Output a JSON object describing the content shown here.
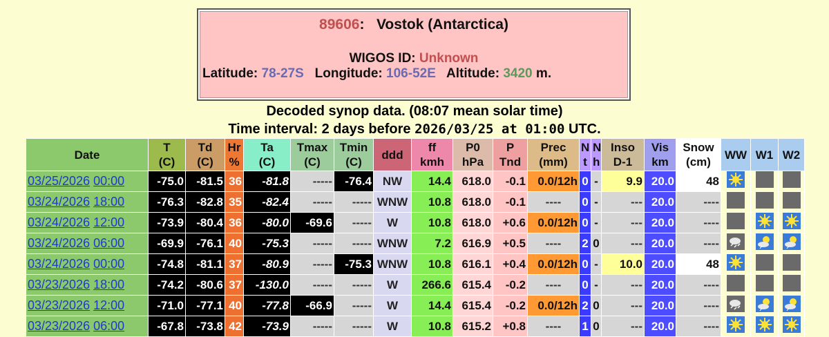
{
  "header": {
    "station": "89606",
    "sep": ":",
    "name": "Vostok (Antarctica)",
    "wigos": {
      "label": "WIGOS ID:",
      "value": "Unknown"
    },
    "latitude": {
      "label": "Latitude:",
      "value": "78-27S"
    },
    "longitude": {
      "label": "Longitude:",
      "value": "106-52E"
    },
    "altitude": {
      "label": "Altitude:",
      "value": "3420",
      "unit": "m."
    }
  },
  "subtitle": {
    "line1": "Decoded synop data. (08:07 mean solar time)",
    "line2a": "Time interval: 2 days before",
    "line2b": "2026/03/25 at 01:00",
    "line2c": "UTC."
  },
  "table": {
    "columns": [
      [
        "Date"
      ],
      [
        "T",
        "(C)"
      ],
      [
        "Td",
        "(C)"
      ],
      [
        "Hr",
        "%"
      ],
      [
        "Ta",
        "(C)"
      ],
      [
        "Tmax",
        "(C)"
      ],
      [
        "Tmin",
        "(C)"
      ],
      [
        "ddd"
      ],
      [
        "ff",
        "kmh"
      ],
      [
        "P0",
        "hPa"
      ],
      [
        "P",
        "Tnd"
      ],
      [
        "Prec",
        "(mm)"
      ],
      [
        "N",
        "t"
      ],
      [
        "N",
        "h"
      ],
      [
        "Inso",
        "D-1"
      ],
      [
        "Vis",
        "km"
      ],
      [
        "Snow",
        "(cm)"
      ],
      [
        "WW"
      ],
      [
        "W1"
      ],
      [
        "W2"
      ]
    ],
    "rows": [
      [
        "03/25/2026",
        "00:00",
        "-75.0",
        "-81.5",
        "36",
        "-81.8",
        "-----",
        "-76.4",
        "NW",
        "14.4",
        "618.0",
        "-0.1",
        "0.0/12h",
        "0",
        "-",
        "9.9",
        "20.0",
        "48"
      ],
      [
        "03/24/2026",
        "18:00",
        "-76.3",
        "-82.8",
        "35",
        "-82.4",
        "-----",
        "-----",
        "WNW",
        "10.8",
        "618.0",
        "-0.1",
        "----",
        "0",
        "-",
        "---",
        "20.0",
        "----"
      ],
      [
        "03/24/2026",
        "12:00",
        "-73.9",
        "-80.4",
        "36",
        "-80.0",
        "-69.6",
        "-----",
        "W",
        "10.8",
        "618.0",
        "+0.6",
        "0.0/12h",
        "0",
        "-",
        "---",
        "20.0",
        "----"
      ],
      [
        "03/24/2026",
        "06:00",
        "-69.9",
        "-76.1",
        "40",
        "-75.3",
        "-----",
        "-----",
        "WNW",
        "7.2",
        "616.9",
        "+0.5",
        "----",
        "2",
        "0",
        "---",
        "20.0",
        "----"
      ],
      [
        "03/24/2026",
        "00:00",
        "-74.8",
        "-81.1",
        "37",
        "-80.9",
        "-----",
        "-75.3",
        "WNW",
        "10.8",
        "616.1",
        "+0.4",
        "0.0/12h",
        "0",
        "-",
        "10.0",
        "20.0",
        "48"
      ],
      [
        "03/23/2026",
        "18:00",
        "-74.2",
        "-80.6",
        "37",
        "-130.0",
        "-----",
        "-----",
        "W",
        "266.6",
        "615.4",
        "-0.2",
        "----",
        "0",
        "-",
        "---",
        "20.0",
        "----"
      ],
      [
        "03/23/2026",
        "12:00",
        "-71.0",
        "-77.1",
        "40",
        "-77.8",
        "-66.9",
        "-----",
        "W",
        "14.4",
        "615.4",
        "-0.2",
        "0.0/12h",
        "2",
        "0",
        "---",
        "20.0",
        "----"
      ],
      [
        "03/23/2026",
        "06:00",
        "-67.8",
        "-73.8",
        "42",
        "-73.9",
        "-----",
        "-----",
        "W",
        "10.8",
        "615.2",
        "+0.8",
        "----",
        "1",
        "0",
        "---",
        "20.0",
        "----"
      ]
    ]
  }
}
